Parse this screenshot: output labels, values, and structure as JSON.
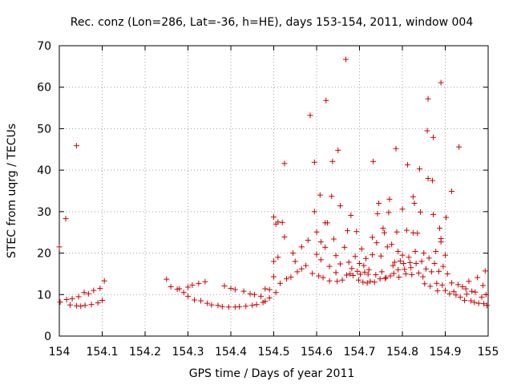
{
  "chart_data": {
    "type": "scatter",
    "title": "Rec. conz (Lon=286, Lat=-36, h=HE), days 153-154, 2011, window 004",
    "xlabel": "GPS time / Days of year 2011",
    "ylabel": "STEC from uqrg / TECUs",
    "xlim": [
      154,
      155
    ],
    "ylim": [
      0,
      70
    ],
    "xticks": [
      "154",
      "154.1",
      "154.2",
      "154.3",
      "154.4",
      "154.5",
      "154.6",
      "154.7",
      "154.8",
      "154.9",
      "155"
    ],
    "yticks": [
      "0",
      "10",
      "20",
      "30",
      "40",
      "50",
      "60",
      "70"
    ],
    "grid": true,
    "marker": "+",
    "color": "#cc0000",
    "series": [
      {
        "points": [
          [
            154.0,
            21.5
          ],
          [
            154.002,
            8.2
          ],
          [
            154.015,
            28.3
          ],
          [
            154.017,
            8.8
          ],
          [
            154.025,
            7.5
          ],
          [
            154.03,
            9.0
          ],
          [
            154.04,
            45.9
          ],
          [
            154.04,
            7.3
          ],
          [
            154.045,
            9.5
          ],
          [
            154.05,
            7.2
          ],
          [
            154.058,
            10.5
          ],
          [
            154.06,
            7.4
          ],
          [
            154.068,
            10.2
          ],
          [
            154.075,
            7.6
          ],
          [
            154.08,
            11.0
          ],
          [
            154.09,
            8.0
          ],
          [
            154.095,
            11.5
          ],
          [
            154.1,
            8.6
          ],
          [
            154.105,
            13.3
          ],
          [
            154.25,
            13.7
          ],
          [
            154.26,
            11.9
          ],
          [
            154.275,
            11.3
          ],
          [
            154.28,
            11.4
          ],
          [
            154.29,
            10.5
          ],
          [
            154.3,
            11.8
          ],
          [
            154.3,
            9.6
          ],
          [
            154.31,
            12.3
          ],
          [
            154.315,
            8.7
          ],
          [
            154.325,
            12.7
          ],
          [
            154.33,
            8.5
          ],
          [
            154.34,
            13.1
          ],
          [
            154.345,
            7.9
          ],
          [
            154.355,
            7.5
          ],
          [
            154.37,
            7.4
          ],
          [
            154.38,
            7.1
          ],
          [
            154.385,
            12.1
          ],
          [
            154.395,
            7.0
          ],
          [
            154.4,
            11.5
          ],
          [
            154.41,
            7.0
          ],
          [
            154.41,
            11.2
          ],
          [
            154.42,
            7.1
          ],
          [
            154.43,
            10.8
          ],
          [
            154.435,
            7.2
          ],
          [
            154.445,
            10.2
          ],
          [
            154.45,
            7.4
          ],
          [
            154.455,
            10.0
          ],
          [
            154.46,
            7.6
          ],
          [
            154.47,
            9.6
          ],
          [
            154.475,
            8.1
          ],
          [
            154.48,
            11.4
          ],
          [
            154.48,
            8.4
          ],
          [
            154.49,
            11.2
          ],
          [
            154.49,
            9.2
          ],
          [
            154.5,
            28.7
          ],
          [
            154.5,
            18.0
          ],
          [
            154.5,
            14.3
          ],
          [
            154.505,
            10.5
          ],
          [
            154.505,
            27.0
          ],
          [
            154.51,
            27.5
          ],
          [
            154.51,
            19.0
          ],
          [
            154.515,
            12.7
          ],
          [
            154.52,
            27.4
          ],
          [
            154.525,
            23.9
          ],
          [
            154.525,
            41.6
          ],
          [
            154.53,
            13.8
          ],
          [
            154.54,
            14.2
          ],
          [
            154.545,
            20.0
          ],
          [
            154.55,
            18.0
          ],
          [
            154.555,
            15.5
          ],
          [
            154.565,
            21.5
          ],
          [
            154.565,
            16.2
          ],
          [
            154.575,
            17.0
          ],
          [
            154.58,
            23.1
          ],
          [
            154.585,
            53.2
          ],
          [
            154.59,
            15.1
          ],
          [
            154.595,
            41.9
          ],
          [
            154.595,
            30.0
          ],
          [
            154.6,
            25.1
          ],
          [
            154.6,
            19.7
          ],
          [
            154.605,
            14.5
          ],
          [
            154.608,
            34.0
          ],
          [
            154.61,
            22.7
          ],
          [
            154.61,
            18.4
          ],
          [
            154.615,
            14.1
          ],
          [
            154.62,
            21.4
          ],
          [
            154.62,
            27.3
          ],
          [
            154.622,
            56.8
          ],
          [
            154.625,
            27.3
          ],
          [
            154.63,
            16.8
          ],
          [
            154.63,
            13.3
          ],
          [
            154.635,
            33.7
          ],
          [
            154.637,
            42.1
          ],
          [
            154.64,
            23.4
          ],
          [
            154.645,
            19.4
          ],
          [
            154.645,
            15.3
          ],
          [
            154.648,
            13.2
          ],
          [
            154.65,
            44.8
          ],
          [
            154.655,
            31.4
          ],
          [
            154.655,
            17.4
          ],
          [
            154.66,
            13.5
          ],
          [
            154.665,
            21.4
          ],
          [
            154.668,
            66.7
          ],
          [
            154.67,
            14.7
          ],
          [
            154.672,
            25.4
          ],
          [
            154.675,
            17.8
          ],
          [
            154.678,
            15.0
          ],
          [
            154.68,
            29.1
          ],
          [
            154.682,
            16.3
          ],
          [
            154.685,
            14.6
          ],
          [
            154.69,
            19.2
          ],
          [
            154.693,
            25.2
          ],
          [
            154.695,
            15.6
          ],
          [
            154.698,
            13.5
          ],
          [
            154.7,
            17.5
          ],
          [
            154.702,
            14.9
          ],
          [
            154.705,
            21.0
          ],
          [
            154.708,
            13.0
          ],
          [
            154.71,
            17.0
          ],
          [
            154.712,
            15.4
          ],
          [
            154.715,
            18.7
          ],
          [
            154.718,
            12.8
          ],
          [
            154.72,
            14.9
          ],
          [
            154.722,
            16.0
          ],
          [
            154.725,
            13.2
          ],
          [
            154.73,
            23.8
          ],
          [
            154.73,
            19.6
          ],
          [
            154.732,
            42.1
          ],
          [
            154.735,
            13.0
          ],
          [
            154.738,
            14.8
          ],
          [
            154.74,
            22.5
          ],
          [
            154.742,
            29.5
          ],
          [
            154.745,
            32.0
          ],
          [
            154.748,
            13.8
          ],
          [
            154.75,
            19.3
          ],
          [
            154.752,
            15.5
          ],
          [
            154.755,
            26.0
          ],
          [
            154.758,
            24.9
          ],
          [
            154.76,
            13.9
          ],
          [
            154.762,
            14.1
          ],
          [
            154.765,
            21.5
          ],
          [
            154.768,
            29.8
          ],
          [
            154.77,
            33.0
          ],
          [
            154.772,
            14.5
          ],
          [
            154.775,
            22.1
          ],
          [
            154.778,
            17.0
          ],
          [
            154.78,
            15.1
          ],
          [
            154.782,
            17.8
          ],
          [
            154.785,
            45.2
          ],
          [
            154.787,
            25.1
          ],
          [
            154.79,
            20.4
          ],
          [
            154.79,
            16.0
          ],
          [
            154.792,
            14.2
          ],
          [
            154.795,
            18.1
          ],
          [
            154.8,
            30.6
          ],
          [
            154.8,
            19.5
          ],
          [
            154.803,
            17.5
          ],
          [
            154.805,
            16.1
          ],
          [
            154.808,
            15.0
          ],
          [
            154.81,
            25.5
          ],
          [
            154.812,
            41.3
          ],
          [
            154.815,
            19.0
          ],
          [
            154.818,
            17.7
          ],
          [
            154.82,
            16.5
          ],
          [
            154.822,
            14.8
          ],
          [
            154.825,
            24.9
          ],
          [
            154.825,
            33.6
          ],
          [
            154.828,
            32.0
          ],
          [
            154.83,
            20.4
          ],
          [
            154.832,
            17.5
          ],
          [
            154.835,
            24.8
          ],
          [
            154.838,
            15.2
          ],
          [
            154.84,
            40.3
          ],
          [
            154.842,
            29.9
          ],
          [
            154.845,
            18.0
          ],
          [
            154.848,
            14.3
          ],
          [
            154.85,
            20.0
          ],
          [
            154.852,
            12.6
          ],
          [
            154.855,
            16.2
          ],
          [
            154.858,
            49.5
          ],
          [
            154.86,
            38.0
          ],
          [
            154.86,
            57.2
          ],
          [
            154.862,
            18.8
          ],
          [
            154.865,
            12.0
          ],
          [
            154.868,
            15.5
          ],
          [
            154.87,
            37.5
          ],
          [
            154.872,
            29.3
          ],
          [
            154.872,
            47.9
          ],
          [
            154.875,
            17.5
          ],
          [
            154.878,
            20.4
          ],
          [
            154.88,
            12.7
          ],
          [
            154.882,
            10.9
          ],
          [
            154.885,
            15.6
          ],
          [
            154.887,
            26.0
          ],
          [
            154.89,
            61.1
          ],
          [
            154.89,
            22.7
          ],
          [
            154.89,
            23.5
          ],
          [
            154.893,
            12.3
          ],
          [
            154.895,
            16.8
          ],
          [
            154.9,
            19.5
          ],
          [
            154.9,
            11.0
          ],
          [
            154.902,
            28.6
          ],
          [
            154.905,
            15.0
          ],
          [
            154.91,
            10.2
          ],
          [
            154.915,
            34.9
          ],
          [
            154.915,
            12.8
          ],
          [
            154.92,
            10.7
          ],
          [
            154.925,
            9.9
          ],
          [
            154.93,
            12.4
          ],
          [
            154.932,
            45.6
          ],
          [
            154.935,
            9.4
          ],
          [
            154.94,
            11.9
          ],
          [
            154.945,
            8.6
          ],
          [
            154.948,
            11.4
          ],
          [
            154.95,
            10.1
          ],
          [
            154.955,
            13.2
          ],
          [
            154.96,
            8.5
          ],
          [
            154.962,
            10.8
          ],
          [
            154.968,
            8.1
          ],
          [
            154.97,
            10.6
          ],
          [
            154.975,
            14.1
          ],
          [
            154.978,
            7.9
          ],
          [
            154.985,
            9.4
          ],
          [
            154.988,
            12.2
          ],
          [
            154.99,
            7.8
          ],
          [
            154.993,
            15.7
          ],
          [
            154.995,
            10.0
          ],
          [
            154.997,
            7.4
          ]
        ]
      }
    ]
  }
}
